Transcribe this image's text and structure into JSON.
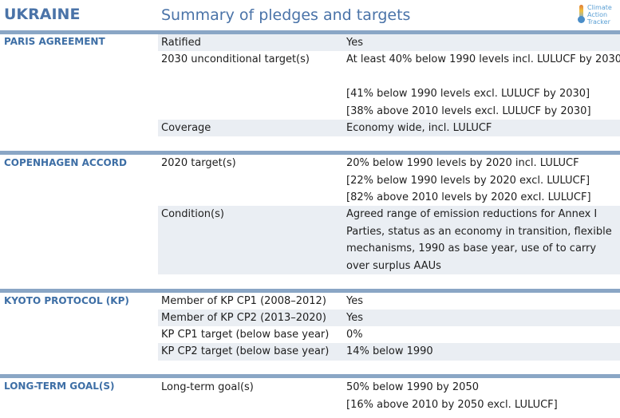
{
  "header": {
    "country": "UKRAINE",
    "title": "Summary of pledges and targets",
    "logo_line1": "Climate",
    "logo_line2": "Action",
    "logo_line3": "Tracker"
  },
  "colors": {
    "accent": "#4a73a8",
    "separator": "#8aa6c5",
    "row_shade": "#eaeef3"
  },
  "sections": [
    {
      "name": "PARIS AGREEMENT",
      "rows": [
        {
          "label": "Ratified",
          "values": [
            "Yes"
          ]
        },
        {
          "label": "2030 unconditional target(s)",
          "values": [
            "At least 40% below 1990 levels incl. LULUCF by 2030",
            "",
            "[41% below 1990 levels excl. LULUCF by 2030]",
            "[38% above 2010 levels excl. LULUCF by 2030]"
          ]
        },
        {
          "label": "Coverage",
          "values": [
            "Economy wide, incl. LULUCF"
          ]
        }
      ]
    },
    {
      "name": "COPENHAGEN ACCORD",
      "rows": [
        {
          "label": "2020 target(s)",
          "values": [
            "20% below 1990 levels by 2020 incl. LULUCF",
            "[22% below 1990 levels by 2020 excl. LULUCF]",
            "[82% above 2010 levels by 2020 excl. LULUCF]"
          ]
        },
        {
          "label": "Condition(s)",
          "values": [
            "Agreed range of emission reductions for Annex I",
            "Parties, status as an economy in transition, flexible",
            "mechanisms, 1990 as base year, use of to carry",
            "over surplus AAUs"
          ]
        }
      ]
    },
    {
      "name": "KYOTO PROTOCOL (KP)",
      "rows": [
        {
          "label": "Member of KP CP1 (2008–2012)",
          "values": [
            "Yes"
          ]
        },
        {
          "label": "Member of KP CP2 (2013–2020)",
          "values": [
            "Yes"
          ]
        },
        {
          "label": "KP CP1 target (below base year)",
          "values": [
            "0%"
          ]
        },
        {
          "label": "KP CP2 target (below base year)",
          "values": [
            "14% below 1990"
          ]
        }
      ]
    },
    {
      "name": "LONG-TERM GOAL(S)",
      "rows": [
        {
          "label": "Long-term goal(s)",
          "values": [
            "50% below 1990 by 2050",
            "[16% above 2010 by 2050 excl. LULUCF]"
          ]
        }
      ]
    }
  ]
}
